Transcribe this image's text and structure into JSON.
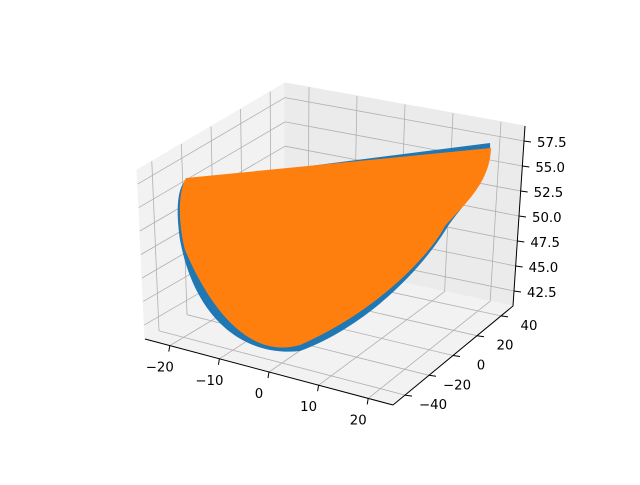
{
  "chart_data": {
    "type": "surface3d",
    "title": "",
    "xlabel": "",
    "ylabel": "",
    "zlabel": "",
    "x_ticks": [
      -20,
      -10,
      0,
      10,
      20
    ],
    "y_ticks": [
      -40,
      -20,
      0,
      20,
      40
    ],
    "z_ticks": [
      42.5,
      45.0,
      47.5,
      50.0,
      52.5,
      55.0,
      57.5
    ],
    "x_tick_labels": [
      "−20",
      "−10",
      "0",
      "10",
      "20"
    ],
    "y_tick_labels": [
      "−40",
      "−20",
      "0",
      "20",
      "40"
    ],
    "z_tick_labels": [
      "42.5",
      "45.0",
      "47.5",
      "50.0",
      "52.5",
      "55.0",
      "57.5"
    ],
    "xlim": [
      -25,
      25
    ],
    "ylim": [
      -50,
      50
    ],
    "zlim": [
      41,
      59
    ],
    "grid": true,
    "series": [
      {
        "color": "#1f77b4"
      },
      {
        "color": "#ff7f0e"
      }
    ]
  }
}
